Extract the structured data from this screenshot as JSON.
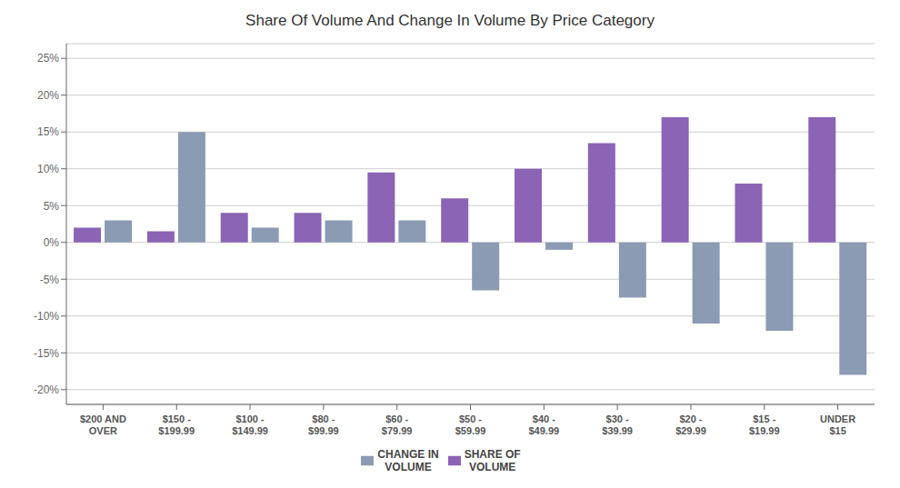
{
  "chart_data": {
    "type": "bar",
    "title": "Share Of Volume And Change In Volume By Price Category",
    "categories": [
      "$200 AND\nOVER",
      "$150 -\n$199.99",
      "$100 -\n$149.99",
      "$80 -\n$99.99",
      "$60 -\n$79.99",
      "$50 -\n$59.99",
      "$40 -\n$49.99",
      "$30 -\n$39.99",
      "$20 -\n$29.99",
      "$15 -\n$19.99",
      "UNDER\n$15"
    ],
    "series": [
      {
        "name": "SHARE OF\nVOLUME",
        "color": "#8B64B5",
        "values": [
          2.0,
          1.5,
          4.0,
          4.0,
          9.5,
          6.0,
          10.0,
          13.5,
          17.0,
          8.0,
          17.0
        ]
      },
      {
        "name": "CHANGE IN\nVOLUME",
        "color": "#8B9BB4",
        "values": [
          3.0,
          15.0,
          2.0,
          3.0,
          3.0,
          -6.5,
          -1.0,
          -7.5,
          -11.0,
          -12.0,
          -18.0
        ]
      }
    ],
    "ylim": [
      -22,
      27
    ],
    "yticks": [
      {
        "value": -20,
        "label": "-20%"
      },
      {
        "value": -15,
        "label": "-15%"
      },
      {
        "value": -10,
        "label": "-10%"
      },
      {
        "value": -5,
        "label": "-5%"
      },
      {
        "value": 0,
        "label": "0%"
      },
      {
        "value": 5,
        "label": "5%"
      },
      {
        "value": 10,
        "label": "10%"
      },
      {
        "value": 15,
        "label": "15%"
      },
      {
        "value": 20,
        "label": "20%"
      },
      {
        "value": 25,
        "label": "25%"
      }
    ],
    "grid": true,
    "legend": "bottom"
  }
}
